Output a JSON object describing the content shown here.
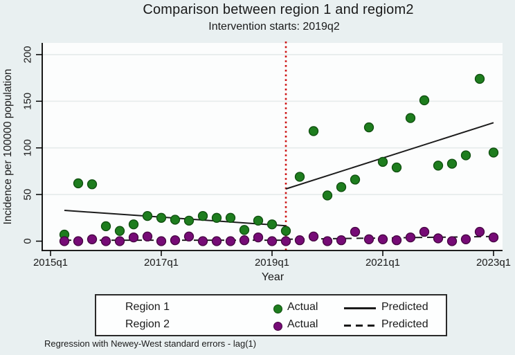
{
  "figure": {
    "title": "Comparison between region 1 and regiom2",
    "subtitle": "Intervention starts: 2019q2",
    "footer": "Regression with Newey-West standard errors - lag(1)"
  },
  "legend": {
    "rows": [
      {
        "region": "Region 1",
        "actual_label": "Actual",
        "predicted_label": "Predicted",
        "marker": "green-dot",
        "line_style": "solid"
      },
      {
        "region": "Region 2",
        "actual_label": "Actual",
        "predicted_label": "Predicted",
        "marker": "purple-dot",
        "line_style": "dashed"
      }
    ]
  },
  "colors": {
    "background": "#e9f0f1",
    "plot_background": "#fcfdfd",
    "gridline": "#e6ecec",
    "axis": "#000000",
    "text": "#1a1a1a",
    "region1": "#1e7d1e",
    "region1_edge": "#0e4d0e",
    "region2": "#760b76",
    "region2_edge": "#43053f",
    "predicted_line": "#1c1c1c",
    "intervention_line": "#cc1111"
  },
  "chart_data": {
    "type": "scatter",
    "title": "Comparison between region 1 and regiom2",
    "subtitle": "Intervention starts: 2019q2",
    "xlabel": "Year",
    "ylabel": "Incidence per 100000 population",
    "note": "Regression with Newey-West standard errors - lag(1)",
    "ylim": [
      0,
      210
    ],
    "y_ticks": [
      0,
      50,
      100,
      150,
      200
    ],
    "x_tick_labels": [
      "2015q1",
      "2017q1",
      "2019q1",
      "2021q1",
      "2023q1"
    ],
    "x_tick_quarters": [
      0,
      8,
      16,
      24,
      32
    ],
    "grid": "horizontal",
    "legend_position": "bottom",
    "quarters": [
      "2015q2",
      "2015q3",
      "2015q4",
      "2016q1",
      "2016q2",
      "2016q3",
      "2016q4",
      "2017q1",
      "2017q2",
      "2017q3",
      "2017q4",
      "2018q1",
      "2018q2",
      "2018q3",
      "2018q4",
      "2019q1",
      "2019q2",
      "2019q3",
      "2019q4",
      "2020q1",
      "2020q2",
      "2020q3",
      "2020q4",
      "2021q1",
      "2021q2",
      "2021q3",
      "2021q4",
      "2022q1",
      "2022q2",
      "2022q3",
      "2022q4",
      "2023q1"
    ],
    "first_quarter_index": 1,
    "series": [
      {
        "name": "Region 1 Actual",
        "type": "scatter",
        "color_key": "region1",
        "edge_key": "region1_edge",
        "values": [
          7,
          62,
          61,
          16,
          11,
          18,
          27,
          25,
          23,
          22,
          27,
          25,
          25,
          12,
          22,
          18,
          11,
          69,
          118,
          49,
          58,
          66,
          122,
          85,
          79,
          132,
          151,
          81,
          83,
          92,
          174,
          95
        ]
      },
      {
        "name": "Region 2 Actual",
        "type": "scatter",
        "color_key": "region2",
        "edge_key": "region2_edge",
        "values": [
          0,
          0,
          2,
          0,
          0,
          4,
          5,
          0,
          1,
          5,
          0,
          0,
          0,
          1,
          4,
          0,
          0,
          1,
          5,
          0,
          1,
          10,
          2,
          2,
          1,
          4,
          10,
          3,
          0,
          2,
          10,
          4
        ]
      },
      {
        "name": "Region 1 Predicted",
        "type": "line",
        "style": "solid",
        "segments": [
          {
            "q1": 1,
            "v1": 33,
            "q2": 17,
            "v2": 16.5
          },
          {
            "q1": 17,
            "v1": 56,
            "q2": 32,
            "v2": 127
          }
        ]
      },
      {
        "name": "Region 2 Predicted",
        "type": "line",
        "style": "dashed",
        "segments": [
          {
            "q1": 1,
            "v1": 1,
            "q2": 17,
            "v2": 1
          },
          {
            "q1": 17,
            "v1": 2,
            "q2": 32,
            "v2": 5
          }
        ]
      }
    ],
    "intervention": {
      "label": "2019q2",
      "quarter_index": 17
    }
  }
}
